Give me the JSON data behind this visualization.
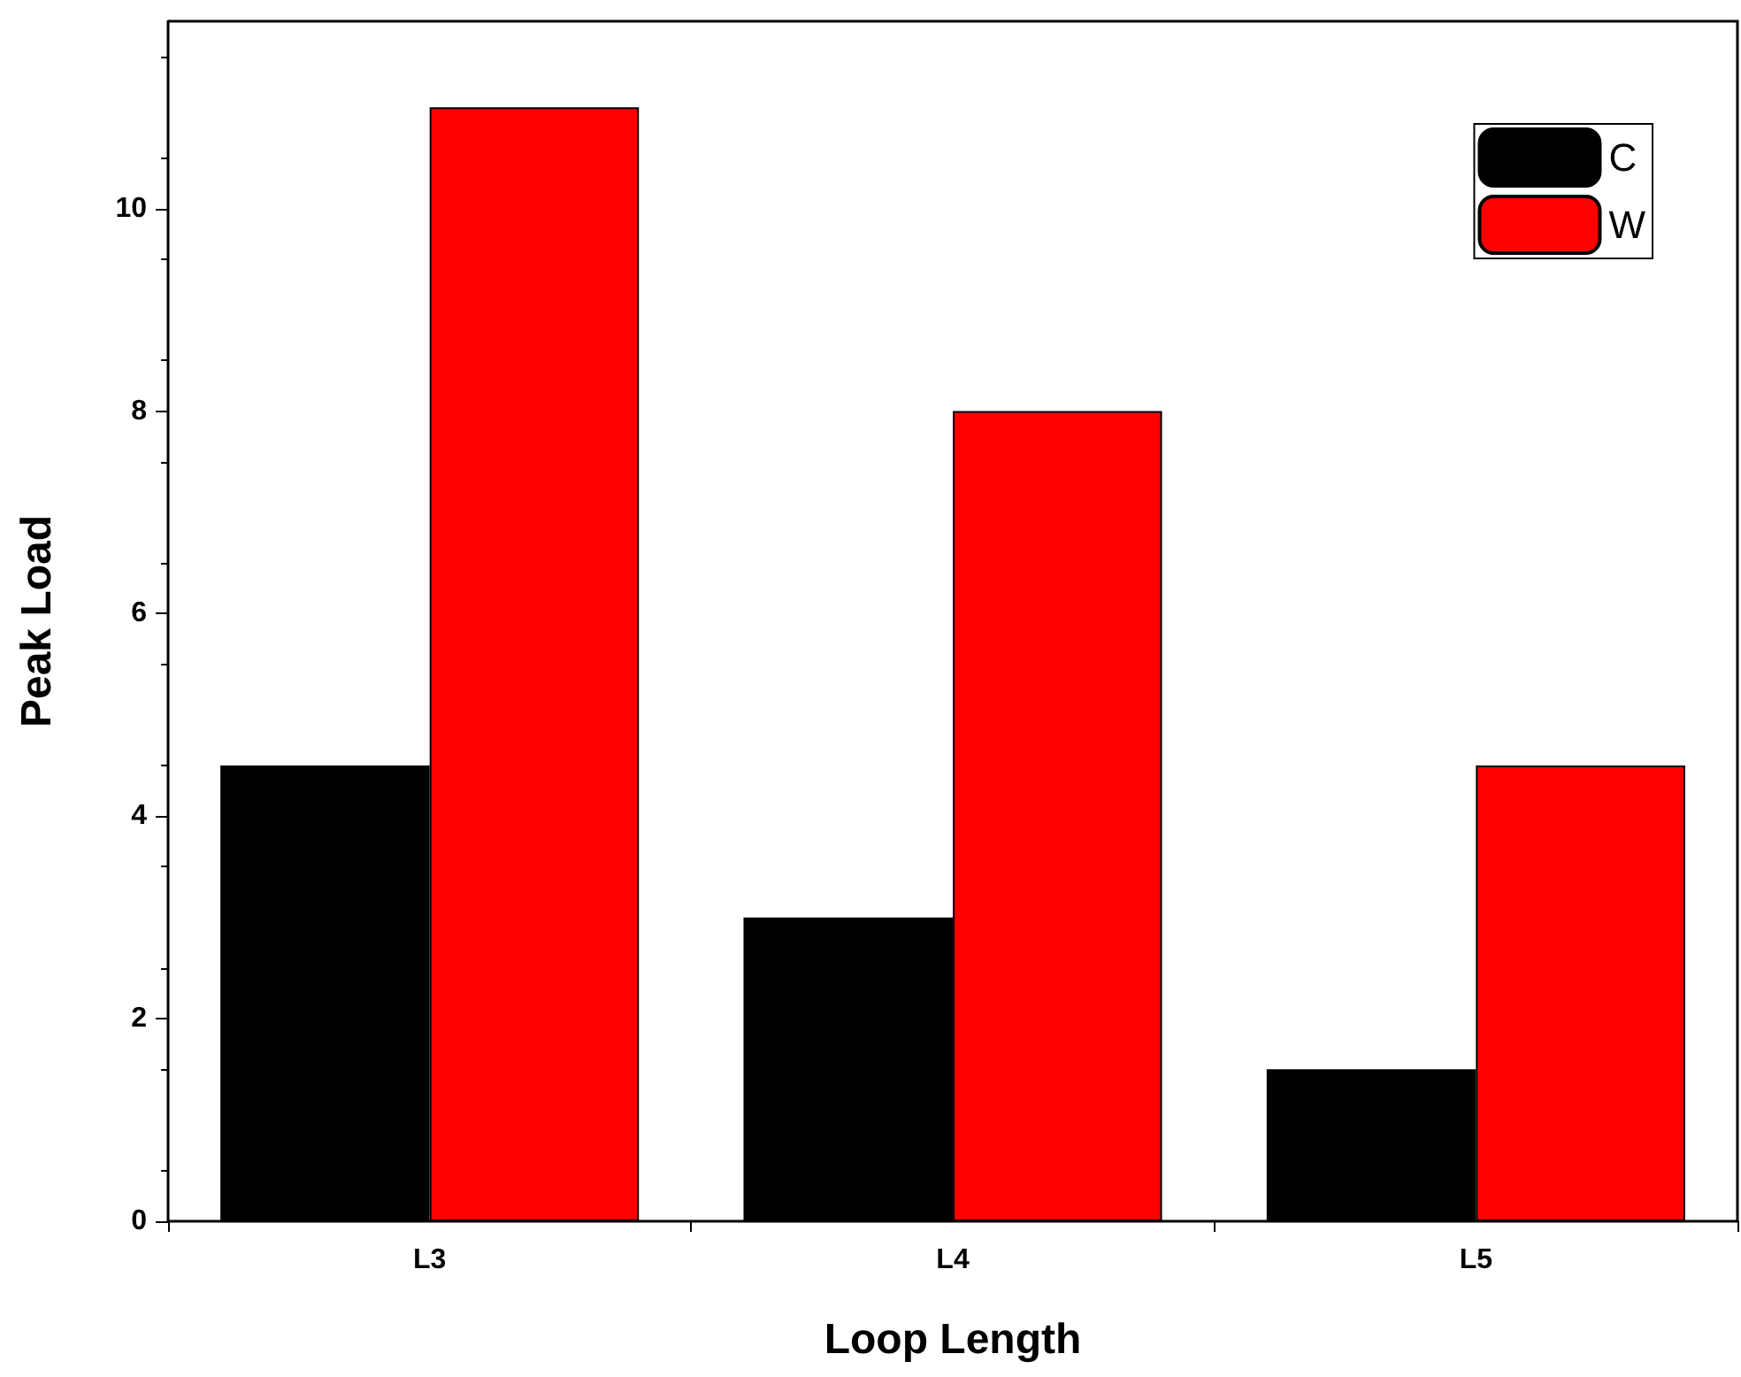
{
  "chart_data": {
    "type": "bar",
    "xlabel": "Loop Length",
    "ylabel": "Peak Load",
    "categories": [
      "L3",
      "L4",
      "L5"
    ],
    "series": [
      {
        "name": "C",
        "color": "#000000",
        "values": [
          4.5,
          3,
          1.5
        ]
      },
      {
        "name": "W",
        "color": "#ff0000",
        "values": [
          11,
          8,
          4.5
        ]
      }
    ],
    "ylim": [
      0,
      11.85
    ],
    "yticks": [
      0,
      2,
      4,
      6,
      8,
      10
    ],
    "grid": false,
    "legend": "top right"
  }
}
